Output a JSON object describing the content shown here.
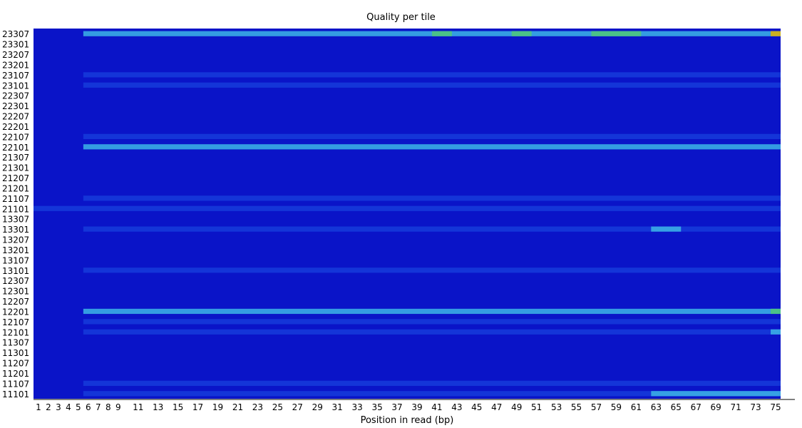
{
  "chart_data": {
    "type": "heatmap",
    "title": "Quality per tile",
    "xlabel": "Position in read (bp)",
    "ylabel": "",
    "x_tick_labels": [
      "1",
      "2",
      "3",
      "4",
      "5",
      "6",
      "7",
      "8",
      "9",
      "11",
      "13",
      "15",
      "17",
      "19",
      "21",
      "23",
      "25",
      "27",
      "29",
      "31",
      "33",
      "35",
      "37",
      "39",
      "41",
      "43",
      "45",
      "47",
      "49",
      "51",
      "53",
      "55",
      "57",
      "59",
      "61",
      "63",
      "65",
      "67",
      "69",
      "71",
      "73",
      "75"
    ],
    "x_positions": [
      1,
      2,
      3,
      4,
      5,
      6,
      7,
      8,
      9,
      11,
      13,
      15,
      17,
      19,
      21,
      23,
      25,
      27,
      29,
      31,
      33,
      35,
      37,
      39,
      41,
      43,
      45,
      47,
      49,
      51,
      53,
      55,
      57,
      59,
      61,
      63,
      65,
      67,
      69,
      71,
      73,
      75
    ],
    "y_tick_labels": [
      "23307",
      "23301",
      "23207",
      "23201",
      "23107",
      "23101",
      "22307",
      "22301",
      "22207",
      "22201",
      "22107",
      "22101",
      "21307",
      "21301",
      "21207",
      "21201",
      "21107",
      "21101",
      "13307",
      "13301",
      "13207",
      "13201",
      "13107",
      "13101",
      "12307",
      "12301",
      "12207",
      "12201",
      "12107",
      "12101",
      "11307",
      "11301",
      "11207",
      "11201",
      "11107",
      "11101"
    ],
    "x_range": [
      1,
      75
    ],
    "background_color": "#0000c8",
    "colors": {
      "base": "#0a14c8",
      "low": "#1e50e6",
      "mid": "#3cb4e6",
      "high": "#50c878",
      "hot": "#e6b400"
    },
    "hotspots": [
      {
        "tile": "23307",
        "x_from": 6,
        "x_to": 75,
        "level": "mid"
      },
      {
        "tile": "23307",
        "x_from": 41,
        "x_to": 42,
        "level": "high"
      },
      {
        "tile": "23307",
        "x_from": 49,
        "x_to": 50,
        "level": "high"
      },
      {
        "tile": "23307",
        "x_from": 57,
        "x_to": 61,
        "level": "high"
      },
      {
        "tile": "23307",
        "x_from": 75,
        "x_to": 75,
        "level": "hot"
      },
      {
        "tile": "23107",
        "x_from": 6,
        "x_to": 75,
        "level": "low"
      },
      {
        "tile": "23101",
        "x_from": 6,
        "x_to": 75,
        "level": "low"
      },
      {
        "tile": "22101",
        "x_from": 6,
        "x_to": 75,
        "level": "mid"
      },
      {
        "tile": "22107",
        "x_from": 6,
        "x_to": 75,
        "level": "low"
      },
      {
        "tile": "21107",
        "x_from": 6,
        "x_to": 75,
        "level": "low"
      },
      {
        "tile": "21101",
        "x_from": 1,
        "x_to": 75,
        "level": "low"
      },
      {
        "tile": "13301",
        "x_from": 6,
        "x_to": 75,
        "level": "low"
      },
      {
        "tile": "13301",
        "x_from": 63,
        "x_to": 65,
        "level": "mid"
      },
      {
        "tile": "13101",
        "x_from": 6,
        "x_to": 75,
        "level": "low"
      },
      {
        "tile": "12201",
        "x_from": 6,
        "x_to": 75,
        "level": "mid"
      },
      {
        "tile": "12201",
        "x_from": 75,
        "x_to": 75,
        "level": "high"
      },
      {
        "tile": "12107",
        "x_from": 6,
        "x_to": 75,
        "level": "low"
      },
      {
        "tile": "12101",
        "x_from": 6,
        "x_to": 75,
        "level": "low"
      },
      {
        "tile": "12101",
        "x_from": 75,
        "x_to": 75,
        "level": "mid"
      },
      {
        "tile": "11107",
        "x_from": 6,
        "x_to": 75,
        "level": "low"
      },
      {
        "tile": "11101",
        "x_from": 6,
        "x_to": 75,
        "level": "low"
      },
      {
        "tile": "11101",
        "x_from": 63,
        "x_to": 75,
        "level": "mid"
      }
    ]
  }
}
